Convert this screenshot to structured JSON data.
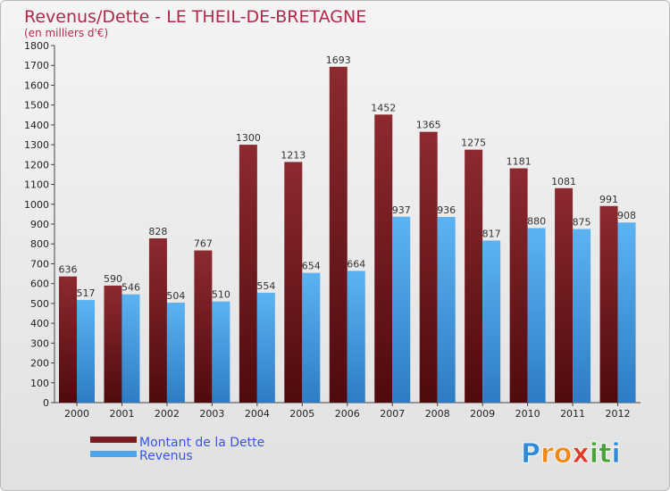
{
  "chart_data": {
    "type": "bar",
    "title": "Revenus/Dette - LE THEIL-DE-BRETAGNE",
    "subtitle": "(en milliers d'€)",
    "categories": [
      "2000",
      "2001",
      "2002",
      "2003",
      "2004",
      "2005",
      "2006",
      "2007",
      "2008",
      "2009",
      "2010",
      "2011",
      "2012"
    ],
    "series": [
      {
        "name": "Montant de la Dette",
        "color": "#7a1c22",
        "values": [
          636,
          590,
          828,
          767,
          1300,
          1213,
          1693,
          1452,
          1365,
          1275,
          1181,
          1081,
          991
        ]
      },
      {
        "name": "Revenus",
        "color": "#4ea5e8",
        "values": [
          517,
          546,
          504,
          510,
          554,
          654,
          664,
          937,
          936,
          817,
          880,
          875,
          908
        ]
      }
    ],
    "ylim": [
      0,
      1800
    ],
    "yticks": [
      0,
      100,
      200,
      300,
      400,
      500,
      600,
      700,
      800,
      900,
      1000,
      1100,
      1200,
      1300,
      1400,
      1500,
      1600,
      1700,
      1800
    ],
    "grid": false,
    "legend_position": "bottom-left"
  },
  "logo": {
    "text": "Proxiti",
    "letters": [
      {
        "ch": "P",
        "color": "#2f8ad8"
      },
      {
        "ch": "r",
        "color": "#f08a1c"
      },
      {
        "ch": "o",
        "color": "#f08a1c"
      },
      {
        "ch": "x",
        "color": "#e23b2a"
      },
      {
        "ch": "i",
        "color": "#4aa33a"
      },
      {
        "ch": "t",
        "color": "#4aa33a"
      },
      {
        "ch": "i",
        "color": "#2f8ad8"
      }
    ]
  }
}
